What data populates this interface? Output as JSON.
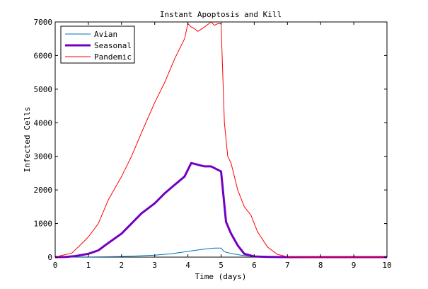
{
  "chart_data": {
    "type": "line",
    "title": "Instant Apoptosis and Kill",
    "xlabel": "Time (days)",
    "ylabel": "Infected Cells",
    "xlim": [
      0,
      10
    ],
    "ylim": [
      0,
      7000
    ],
    "xticks": [
      0,
      1,
      2,
      3,
      4,
      5,
      6,
      7,
      8,
      9,
      10
    ],
    "yticks": [
      0,
      1000,
      2000,
      3000,
      4000,
      5000,
      6000,
      7000
    ],
    "grid": false,
    "legend_position": "top-left",
    "series": [
      {
        "name": "Avian",
        "color": "#0072bd",
        "style": "thin",
        "x": [
          0,
          0.5,
          1,
          1.5,
          2,
          2.5,
          3,
          3.5,
          4,
          4.5,
          4.8,
          5.0,
          5.1,
          5.3,
          5.6,
          6.0,
          6.5,
          7,
          8,
          9,
          10
        ],
        "y": [
          0,
          2,
          5,
          10,
          20,
          35,
          60,
          100,
          170,
          240,
          270,
          270,
          160,
          110,
          60,
          20,
          5,
          0,
          0,
          0,
          0
        ]
      },
      {
        "name": "Seasonal",
        "color": "#7300bf",
        "style": "thick",
        "x": [
          0,
          0.3,
          0.6,
          1.0,
          1.3,
          1.6,
          2.0,
          2.3,
          2.6,
          3.0,
          3.3,
          3.6,
          3.9,
          4.1,
          4.3,
          4.5,
          4.7,
          4.9,
          5.0,
          5.15,
          5.3,
          5.5,
          5.7,
          6.0,
          6.5,
          7,
          8,
          9,
          10
        ],
        "y": [
          0,
          5,
          30,
          100,
          200,
          420,
          700,
          1000,
          1300,
          1600,
          1900,
          2150,
          2400,
          2800,
          2750,
          2700,
          2700,
          2600,
          2550,
          1050,
          700,
          350,
          100,
          20,
          5,
          0,
          0,
          0,
          0
        ]
      },
      {
        "name": "Pandemic",
        "color": "#ff0000",
        "style": "thin",
        "x": [
          0,
          0.2,
          0.5,
          0.8,
          1.0,
          1.3,
          1.6,
          2.0,
          2.3,
          2.6,
          3.0,
          3.3,
          3.6,
          3.9,
          4.0,
          4.1,
          4.2,
          4.3,
          4.5,
          4.7,
          4.8,
          4.9,
          5.0,
          5.1,
          5.2,
          5.3,
          5.5,
          5.7,
          5.9,
          6.1,
          6.4,
          6.7,
          7.0,
          7.5,
          8,
          9,
          10
        ],
        "y": [
          0,
          50,
          120,
          400,
          600,
          1000,
          1700,
          2400,
          3000,
          3700,
          4600,
          5200,
          5900,
          6500,
          6950,
          6850,
          6800,
          6720,
          6850,
          7000,
          6900,
          6950,
          6950,
          4000,
          3000,
          2800,
          2000,
          1500,
          1250,
          750,
          300,
          80,
          10,
          0,
          0,
          0,
          0
        ]
      }
    ]
  }
}
